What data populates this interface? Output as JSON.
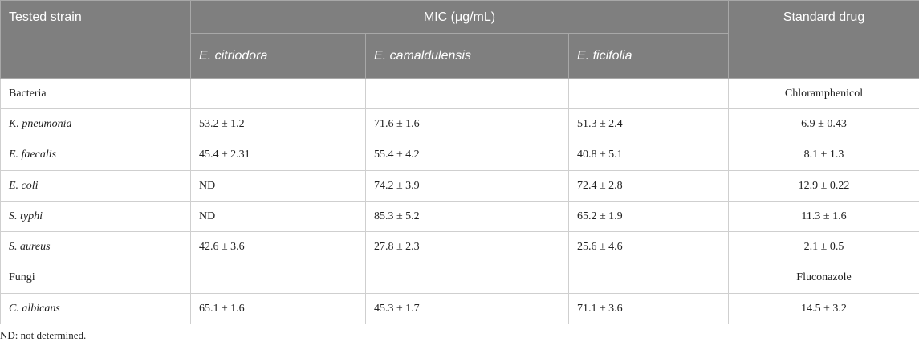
{
  "table": {
    "header": {
      "strain": "Tested strain",
      "mic": "MIC (μg/mL)",
      "standard": "Standard drug",
      "species": [
        "E. citriodora",
        "E. camaldulensis",
        "E. ficifolia"
      ]
    },
    "rows": [
      {
        "group": "Bacteria",
        "drug": "Chloramphenicol"
      },
      {
        "strain": "K. pneumonia",
        "mic": [
          "53.2 ± 1.2",
          "71.6 ± 1.6",
          "51.3 ± 2.4"
        ],
        "drug": "6.9 ± 0.43"
      },
      {
        "strain": "E. faecalis",
        "mic": [
          "45.4 ± 2.31",
          "55.4 ± 4.2",
          "40.8 ± 5.1"
        ],
        "drug": "8.1 ± 1.3"
      },
      {
        "strain": "E. coli",
        "mic": [
          "ND",
          "74.2 ± 3.9",
          "72.4 ± 2.8"
        ],
        "drug": "12.9 ± 0.22"
      },
      {
        "strain": "S. typhi",
        "mic": [
          "ND",
          "85.3 ± 5.2",
          "65.2 ± 1.9"
        ],
        "drug": "11.3 ± 1.6"
      },
      {
        "strain": "S. aureus",
        "mic": [
          "42.6 ± 3.6",
          "27.8 ± 2.3",
          "25.6 ± 4.6"
        ],
        "drug": "2.1 ± 0.5"
      },
      {
        "group": "Fungi",
        "drug": "Fluconazole"
      },
      {
        "strain": "C. albicans",
        "mic": [
          "65.1 ± 1.6",
          "45.3 ± 1.7",
          "71.1 ± 3.6"
        ],
        "drug": "14.5 ± 3.2"
      }
    ],
    "footnote": "ND: not determined."
  }
}
